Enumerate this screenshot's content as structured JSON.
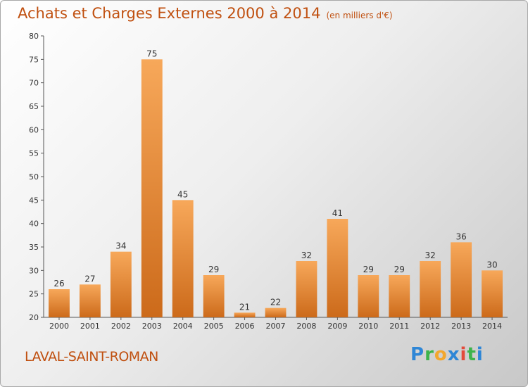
{
  "header": {
    "title": "Achats et Charges Externes 2000 à 2014",
    "unit": "(en milliers d'€)"
  },
  "commune": "LAVAL-SAINT-ROMAN",
  "logo": {
    "letters": [
      "P",
      "r",
      "o",
      "x",
      "i",
      "t",
      "i"
    ],
    "colors": [
      "#2e86d6",
      "#3cb34a",
      "#f2a72e",
      "#2e86d6",
      "#e34a3a",
      "#3cb34a",
      "#2e86d6"
    ]
  },
  "colors": {
    "bar_light": "#f7a85a",
    "bar_dark": "#cc6a1a",
    "text_accent": "#c05010"
  },
  "chart_data": {
    "type": "bar",
    "title": "Achats et Charges Externes 2000 à 2014",
    "subtitle": "(en milliers d'€)",
    "categories": [
      "2000",
      "2001",
      "2002",
      "2003",
      "2004",
      "2005",
      "2006",
      "2007",
      "2008",
      "2009",
      "2010",
      "2011",
      "2012",
      "2013",
      "2014"
    ],
    "values": [
      26,
      27,
      34,
      75,
      45,
      29,
      21,
      22,
      32,
      41,
      29,
      29,
      32,
      36,
      30
    ],
    "ylim": [
      20,
      80
    ],
    "yticks": [
      20,
      25,
      30,
      35,
      40,
      45,
      50,
      55,
      60,
      65,
      70,
      75,
      80
    ],
    "grid": false,
    "legend": "none"
  }
}
